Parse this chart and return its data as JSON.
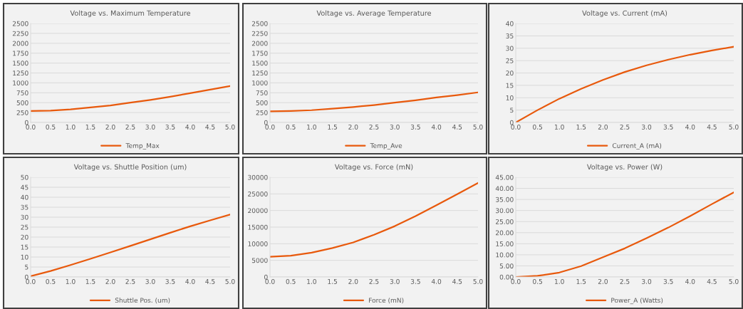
{
  "chart_data": [
    {
      "type": "line",
      "title": "Voltage vs. Maximum Temperature",
      "x": [
        0,
        0.5,
        1,
        1.5,
        2,
        2.5,
        3,
        3.5,
        4,
        4.5,
        5
      ],
      "series": [
        {
          "name": "Temp_Max",
          "color": "#e8590c",
          "values": [
            290,
            300,
            330,
            380,
            430,
            500,
            570,
            650,
            740,
            830,
            920
          ]
        }
      ],
      "xlim": [
        0,
        5
      ],
      "xticks": [
        {
          "value": 0,
          "label": "0.0"
        },
        {
          "value": 0.5,
          "label": "0.5"
        },
        {
          "value": 1,
          "label": "1.0"
        },
        {
          "value": 1.5,
          "label": "1.5"
        },
        {
          "value": 2,
          "label": "2.0"
        },
        {
          "value": 2.5,
          "label": "2.5"
        },
        {
          "value": 3,
          "label": "3.0"
        },
        {
          "value": 3.5,
          "label": "3.5"
        },
        {
          "value": 4,
          "label": "4.0"
        },
        {
          "value": 4.5,
          "label": "4.5"
        },
        {
          "value": 5,
          "label": "5.0"
        }
      ],
      "ylim": [
        0,
        2500
      ],
      "yticks": [
        0,
        250,
        500,
        750,
        1000,
        1250,
        1500,
        1750,
        2000,
        2250,
        2500
      ],
      "grid": "y",
      "legend": "bottom"
    },
    {
      "type": "line",
      "title": "Voltage vs. Average Temperature",
      "x": [
        0,
        0.5,
        1,
        1.5,
        2,
        2.5,
        3,
        3.5,
        4,
        4.5,
        5
      ],
      "series": [
        {
          "name": "Temp_Ave",
          "color": "#e8590c",
          "values": [
            280,
            290,
            310,
            350,
            390,
            440,
            500,
            560,
            630,
            690,
            760
          ]
        }
      ],
      "xlim": [
        0,
        5
      ],
      "xticks": [
        {
          "value": 0,
          "label": "0.0"
        },
        {
          "value": 0.5,
          "label": "0.5"
        },
        {
          "value": 1,
          "label": "1.0"
        },
        {
          "value": 1.5,
          "label": "1.5"
        },
        {
          "value": 2,
          "label": "2.0"
        },
        {
          "value": 2.5,
          "label": "2.5"
        },
        {
          "value": 3,
          "label": "3.0"
        },
        {
          "value": 3.5,
          "label": "3.5"
        },
        {
          "value": 4,
          "label": "4.0"
        },
        {
          "value": 4.5,
          "label": "4.5"
        },
        {
          "value": 5,
          "label": "5.0"
        }
      ],
      "ylim": [
        0,
        2500
      ],
      "yticks": [
        0,
        250,
        500,
        750,
        1000,
        1250,
        1500,
        1750,
        2000,
        2250,
        2500
      ],
      "grid": "y",
      "legend": "bottom"
    },
    {
      "type": "line",
      "title": "Voltage vs. Current (mA)",
      "x": [
        0,
        0.5,
        1,
        1.5,
        2,
        2.5,
        3,
        3.5,
        4,
        4.5,
        5
      ],
      "series": [
        {
          "name": "Current_A (mA)",
          "color": "#e8590c",
          "values": [
            0,
            5,
            9.6,
            13.6,
            17.2,
            20.4,
            23.1,
            25.4,
            27.4,
            29.1,
            30.6
          ]
        }
      ],
      "xlim": [
        0,
        5
      ],
      "xticks": [
        {
          "value": 0,
          "label": "0.0"
        },
        {
          "value": 0.5,
          "label": "0.5"
        },
        {
          "value": 1,
          "label": "1.0"
        },
        {
          "value": 1.5,
          "label": "1.5"
        },
        {
          "value": 2,
          "label": "2.0"
        },
        {
          "value": 2.5,
          "label": "2.5"
        },
        {
          "value": 3,
          "label": "3.0"
        },
        {
          "value": 3.5,
          "label": "3.5"
        },
        {
          "value": 4,
          "label": "4.0"
        },
        {
          "value": 4.5,
          "label": "4.5"
        },
        {
          "value": 5,
          "label": "5.0"
        }
      ],
      "ylim": [
        0,
        40
      ],
      "yticks": [
        0,
        5,
        10,
        15,
        20,
        25,
        30,
        35,
        40
      ],
      "grid": "y",
      "legend": "bottom"
    },
    {
      "type": "line",
      "title": "Voltage vs. Shuttle Position (um)",
      "x": [
        0,
        0.5,
        1,
        1.5,
        2,
        2.5,
        3,
        3.5,
        4,
        4.5,
        5
      ],
      "series": [
        {
          "name": "Shuttle Pos. (um)",
          "color": "#e8590c",
          "values": [
            0.4,
            3,
            6,
            9.1,
            12.3,
            15.6,
            18.9,
            22.2,
            25.4,
            28.4,
            31.3
          ]
        }
      ],
      "xlim": [
        0,
        5
      ],
      "xticks": [
        {
          "value": 0,
          "label": "0.0"
        },
        {
          "value": 0.5,
          "label": "0.5"
        },
        {
          "value": 1,
          "label": "1.0"
        },
        {
          "value": 1.5,
          "label": "1.5"
        },
        {
          "value": 2,
          "label": "2.0"
        },
        {
          "value": 2.5,
          "label": "2.5"
        },
        {
          "value": 3,
          "label": "3.0"
        },
        {
          "value": 3.5,
          "label": "3.5"
        },
        {
          "value": 4,
          "label": "4.0"
        },
        {
          "value": 4.5,
          "label": "4.5"
        },
        {
          "value": 5,
          "label": "5.0"
        }
      ],
      "ylim": [
        0,
        50
      ],
      "yticks": [
        0,
        5,
        10,
        15,
        20,
        25,
        30,
        35,
        40,
        45,
        50
      ],
      "grid": "y",
      "legend": "bottom"
    },
    {
      "type": "line",
      "title": "Voltage vs. Force (mN)",
      "x": [
        0,
        0.5,
        1,
        1.5,
        2,
        2.5,
        3,
        3.5,
        4,
        4.5,
        5
      ],
      "series": [
        {
          "name": "Force (mN)",
          "color": "#e8590c",
          "values": [
            6100,
            6400,
            7300,
            8700,
            10400,
            12700,
            15300,
            18300,
            21600,
            24900,
            28300
          ]
        }
      ],
      "xlim": [
        0,
        5
      ],
      "xticks": [
        {
          "value": 0,
          "label": "0.0"
        },
        {
          "value": 0.5,
          "label": "0.5"
        },
        {
          "value": 1,
          "label": "1.0"
        },
        {
          "value": 1.5,
          "label": "1.5"
        },
        {
          "value": 2,
          "label": "2.0"
        },
        {
          "value": 2.5,
          "label": "2.5"
        },
        {
          "value": 3,
          "label": "3.0"
        },
        {
          "value": 3.5,
          "label": "3.5"
        },
        {
          "value": 4,
          "label": "4.0"
        },
        {
          "value": 4.5,
          "label": "4.5"
        },
        {
          "value": 5,
          "label": "5.0"
        }
      ],
      "ylim": [
        0,
        30000
      ],
      "yticks": [
        0,
        5000,
        10000,
        15000,
        20000,
        25000,
        30000
      ],
      "grid": "y",
      "legend": "bottom"
    },
    {
      "type": "line",
      "title": "Voltage vs. Power (W)",
      "x": [
        0,
        0.5,
        1,
        1.5,
        2,
        2.5,
        3,
        3.5,
        4,
        4.5,
        5
      ],
      "series": [
        {
          "name": "Power_A (Watts)",
          "color": "#e8590c",
          "values": [
            0,
            0.5,
            2.0,
            4.9,
            8.9,
            12.9,
            17.5,
            22.3,
            27.5,
            32.9,
            38.2
          ]
        }
      ],
      "xlim": [
        0,
        5
      ],
      "xticks": [
        {
          "value": 0,
          "label": "0.0"
        },
        {
          "value": 0.5,
          "label": "0.5"
        },
        {
          "value": 1,
          "label": "1.0"
        },
        {
          "value": 1.5,
          "label": "1.5"
        },
        {
          "value": 2,
          "label": "2.0"
        },
        {
          "value": 2.5,
          "label": "2.5"
        },
        {
          "value": 3,
          "label": "3.0"
        },
        {
          "value": 3.5,
          "label": "3.5"
        },
        {
          "value": 4,
          "label": "4.0"
        },
        {
          "value": 4.5,
          "label": "4.5"
        },
        {
          "value": 5,
          "label": "5.0"
        }
      ],
      "ylim": [
        0,
        45
      ],
      "yticks": [
        {
          "value": 0,
          "label": "0.00"
        },
        {
          "value": 5,
          "label": "5.00"
        },
        {
          "value": 10,
          "label": "10.00"
        },
        {
          "value": 15,
          "label": "15.00"
        },
        {
          "value": 20,
          "label": "20.00"
        },
        {
          "value": 25,
          "label": "25.00"
        },
        {
          "value": 30,
          "label": "30.00"
        },
        {
          "value": 35,
          "label": "35.00"
        },
        {
          "value": 40,
          "label": "40.00"
        },
        {
          "value": 45,
          "label": "45.00"
        }
      ],
      "grid": "y",
      "legend": "bottom"
    }
  ]
}
